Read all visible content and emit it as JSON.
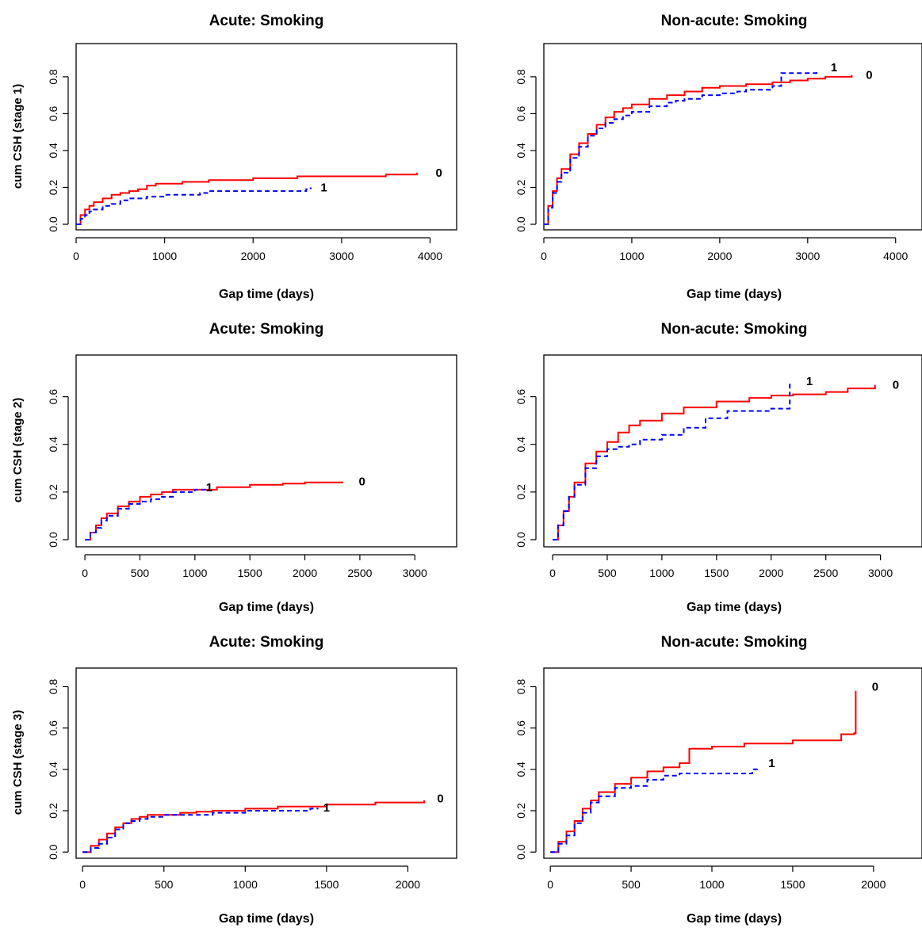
{
  "colors": {
    "group_0": "#ff0000",
    "group_1": "#0000ff",
    "axis": "#000000",
    "background": "#ffffff"
  },
  "chart_data": [
    {
      "type": "line",
      "title": "Acute: Smoking",
      "xlabel": "Gap time (days)",
      "ylabel": "cum CSH (stage 1)",
      "xlim": [
        0,
        4300
      ],
      "ylim": [
        -0.03,
        0.98
      ],
      "xticks": [
        0,
        1000,
        2000,
        3000,
        4000
      ],
      "yticks": [
        0.0,
        0.2,
        0.4,
        0.6,
        0.8
      ],
      "xtick_labels": [
        "0",
        "1000",
        "2000",
        "3000",
        "4000"
      ],
      "ytick_labels": [
        "0.0",
        "0.2",
        "0.4",
        "0.6",
        "0.8"
      ],
      "grid": false,
      "legend": "none",
      "series": [
        {
          "name": "0",
          "color": "#ff0000",
          "dashed": false,
          "x": [
            0,
            50,
            100,
            150,
            200,
            300,
            400,
            500,
            600,
            700,
            800,
            900,
            1200,
            1500,
            2000,
            2500,
            3000,
            3500,
            3850
          ],
          "y": [
            0,
            0.05,
            0.08,
            0.1,
            0.12,
            0.14,
            0.16,
            0.17,
            0.18,
            0.19,
            0.21,
            0.22,
            0.23,
            0.24,
            0.25,
            0.26,
            0.26,
            0.27,
            0.28
          ]
        },
        {
          "name": "1",
          "color": "#0000ff",
          "dashed": true,
          "x": [
            0,
            50,
            100,
            150,
            200,
            300,
            400,
            500,
            600,
            800,
            1000,
            1400,
            1500,
            2000,
            2600,
            2650
          ],
          "y": [
            0,
            0.03,
            0.05,
            0.07,
            0.08,
            0.1,
            0.11,
            0.13,
            0.14,
            0.15,
            0.16,
            0.17,
            0.18,
            0.18,
            0.19,
            0.2
          ]
        }
      ],
      "end_labels": [
        {
          "text": "0",
          "x": 4100,
          "y": 0.28
        },
        {
          "text": "1",
          "x": 2800,
          "y": 0.2
        }
      ]
    },
    {
      "type": "line",
      "title": "Non-acute: Smoking",
      "xlabel": "Gap time (days)",
      "ylabel": "",
      "xlim": [
        0,
        4300
      ],
      "ylim": [
        -0.03,
        0.98
      ],
      "xticks": [
        0,
        1000,
        2000,
        3000,
        4000
      ],
      "yticks": [
        0.0,
        0.2,
        0.4,
        0.6,
        0.8
      ],
      "xtick_labels": [
        "0",
        "1000",
        "2000",
        "3000",
        "4000"
      ],
      "ytick_labels": [
        "0.0",
        "0.2",
        "0.4",
        "0.6",
        "0.8"
      ],
      "grid": false,
      "legend": "none",
      "series": [
        {
          "name": "0",
          "color": "#ff0000",
          "dashed": false,
          "x": [
            0,
            50,
            100,
            150,
            200,
            300,
            400,
            500,
            600,
            700,
            800,
            900,
            1000,
            1200,
            1400,
            1600,
            1800,
            2000,
            2300,
            2600,
            2800,
            3000,
            3200,
            3500
          ],
          "y": [
            0,
            0.1,
            0.18,
            0.25,
            0.3,
            0.38,
            0.44,
            0.49,
            0.54,
            0.58,
            0.61,
            0.63,
            0.65,
            0.68,
            0.7,
            0.72,
            0.74,
            0.75,
            0.76,
            0.77,
            0.78,
            0.79,
            0.8,
            0.81
          ]
        },
        {
          "name": "1",
          "color": "#0000ff",
          "dashed": true,
          "x": [
            0,
            50,
            100,
            150,
            200,
            300,
            400,
            500,
            600,
            700,
            800,
            900,
            1000,
            1200,
            1400,
            1500,
            1600,
            1800,
            2000,
            2200,
            2300,
            2600,
            2700,
            3000,
            3100
          ],
          "y": [
            0,
            0.09,
            0.17,
            0.23,
            0.28,
            0.36,
            0.42,
            0.48,
            0.52,
            0.55,
            0.57,
            0.59,
            0.61,
            0.64,
            0.66,
            0.67,
            0.68,
            0.7,
            0.71,
            0.72,
            0.73,
            0.75,
            0.82,
            0.82,
            0.83
          ]
        }
      ],
      "end_labels": [
        {
          "text": "1",
          "x": 3300,
          "y": 0.85
        },
        {
          "text": "0",
          "x": 3700,
          "y": 0.81
        }
      ]
    },
    {
      "type": "line",
      "title": "Acute: Smoking",
      "xlabel": "Gap time (days)",
      "ylabel": "cum CSH (stage 2)",
      "xlim": [
        -80,
        3380
      ],
      "ylim": [
        -0.03,
        0.775
      ],
      "xticks": [
        0,
        500,
        1000,
        1500,
        2000,
        2500,
        3000
      ],
      "yticks": [
        0.0,
        0.2,
        0.4,
        0.6
      ],
      "xtick_labels": [
        "0",
        "500",
        "1000",
        "1500",
        "2000",
        "2500",
        "3000"
      ],
      "ytick_labels": [
        "0.0",
        "0.2",
        "0.4",
        "0.6"
      ],
      "grid": false,
      "legend": "none",
      "series": [
        {
          "name": "0",
          "color": "#ff0000",
          "dashed": false,
          "x": [
            0,
            50,
            100,
            150,
            200,
            300,
            400,
            500,
            600,
            700,
            800,
            1000,
            1200,
            1500,
            1800,
            2000,
            2350
          ],
          "y": [
            0,
            0.03,
            0.06,
            0.09,
            0.11,
            0.14,
            0.16,
            0.18,
            0.19,
            0.2,
            0.21,
            0.21,
            0.22,
            0.23,
            0.235,
            0.24,
            0.24
          ]
        },
        {
          "name": "1",
          "color": "#0000ff",
          "dashed": true,
          "x": [
            0,
            50,
            100,
            150,
            200,
            300,
            400,
            500,
            600,
            700,
            800,
            1000,
            1100
          ],
          "y": [
            0,
            0.03,
            0.05,
            0.08,
            0.1,
            0.13,
            0.15,
            0.16,
            0.17,
            0.18,
            0.2,
            0.21,
            0.21
          ]
        }
      ],
      "end_labels": [
        {
          "text": "0",
          "x": 2520,
          "y": 0.245
        },
        {
          "text": "1",
          "x": 1130,
          "y": 0.22
        }
      ]
    },
    {
      "type": "line",
      "title": "Non-acute: Smoking",
      "xlabel": "Gap time (days)",
      "ylabel": "",
      "xlim": [
        -80,
        3380
      ],
      "ylim": [
        -0.03,
        0.775
      ],
      "xticks": [
        0,
        500,
        1000,
        1500,
        2000,
        2500,
        3000
      ],
      "yticks": [
        0.0,
        0.2,
        0.4,
        0.6
      ],
      "xtick_labels": [
        "0",
        "500",
        "1000",
        "1500",
        "2000",
        "2500",
        "3000"
      ],
      "ytick_labels": [
        "0.0",
        "0.2",
        "0.4",
        "0.6"
      ],
      "grid": false,
      "legend": "none",
      "series": [
        {
          "name": "0",
          "color": "#ff0000",
          "dashed": false,
          "x": [
            0,
            50,
            100,
            150,
            200,
            300,
            400,
            500,
            600,
            700,
            800,
            1000,
            1200,
            1500,
            1800,
            2000,
            2200,
            2500,
            2700,
            2950
          ],
          "y": [
            0,
            0.06,
            0.12,
            0.18,
            0.24,
            0.32,
            0.37,
            0.41,
            0.45,
            0.48,
            0.5,
            0.53,
            0.555,
            0.58,
            0.595,
            0.605,
            0.61,
            0.62,
            0.635,
            0.65
          ]
        },
        {
          "name": "1",
          "color": "#0000ff",
          "dashed": true,
          "x": [
            0,
            50,
            100,
            150,
            200,
            300,
            400,
            500,
            600,
            700,
            800,
            1000,
            1200,
            1400,
            1600,
            2000,
            2150,
            2170
          ],
          "y": [
            0,
            0.06,
            0.12,
            0.18,
            0.23,
            0.3,
            0.35,
            0.38,
            0.39,
            0.4,
            0.42,
            0.44,
            0.47,
            0.51,
            0.54,
            0.55,
            0.55,
            0.66
          ]
        }
      ],
      "end_labels": [
        {
          "text": "1",
          "x": 2350,
          "y": 0.665
        },
        {
          "text": "0",
          "x": 3140,
          "y": 0.65
        }
      ]
    },
    {
      "type": "line",
      "title": "Acute: Smoking",
      "xlabel": "Gap time (days)",
      "ylabel": "cum CSH (stage 3)",
      "xlim": [
        -40,
        2300
      ],
      "ylim": [
        -0.03,
        0.89
      ],
      "xticks": [
        0,
        500,
        1000,
        1500,
        2000
      ],
      "yticks": [
        0.0,
        0.2,
        0.4,
        0.6,
        0.8
      ],
      "xtick_labels": [
        "0",
        "500",
        "1000",
        "1500",
        "2000"
      ],
      "ytick_labels": [
        "0.0",
        "0.2",
        "0.4",
        "0.6",
        "0.8"
      ],
      "grid": false,
      "legend": "none",
      "series": [
        {
          "name": "0",
          "color": "#ff0000",
          "dashed": false,
          "x": [
            0,
            50,
            100,
            150,
            200,
            250,
            300,
            350,
            400,
            500,
            600,
            700,
            800,
            1000,
            1200,
            1500,
            1800,
            2100
          ],
          "y": [
            0,
            0.03,
            0.06,
            0.09,
            0.12,
            0.14,
            0.16,
            0.17,
            0.18,
            0.18,
            0.19,
            0.195,
            0.2,
            0.21,
            0.22,
            0.23,
            0.24,
            0.25
          ]
        },
        {
          "name": "1",
          "color": "#0000ff",
          "dashed": true,
          "x": [
            0,
            50,
            100,
            150,
            200,
            250,
            300,
            350,
            400,
            500,
            600,
            800,
            1000,
            1200,
            1400,
            1450
          ],
          "y": [
            0,
            0.02,
            0.04,
            0.07,
            0.11,
            0.14,
            0.15,
            0.16,
            0.17,
            0.18,
            0.18,
            0.19,
            0.2,
            0.2,
            0.21,
            0.21
          ]
        }
      ],
      "end_labels": [
        {
          "text": "0",
          "x": 2200,
          "y": 0.26
        },
        {
          "text": "1",
          "x": 1500,
          "y": 0.215
        }
      ]
    },
    {
      "type": "line",
      "title": "Non-acute: Smoking",
      "xlabel": "Gap time (days)",
      "ylabel": "",
      "xlim": [
        -40,
        2300
      ],
      "ylim": [
        -0.03,
        0.89
      ],
      "xticks": [
        0,
        500,
        1000,
        1500,
        2000
      ],
      "yticks": [
        0.0,
        0.2,
        0.4,
        0.6,
        0.8
      ],
      "xtick_labels": [
        "0",
        "500",
        "1000",
        "1500",
        "2000"
      ],
      "ytick_labels": [
        "0.0",
        "0.2",
        "0.4",
        "0.6",
        "0.8"
      ],
      "grid": false,
      "legend": "none",
      "series": [
        {
          "name": "0",
          "color": "#ff0000",
          "dashed": false,
          "x": [
            0,
            50,
            100,
            150,
            200,
            250,
            300,
            400,
            500,
            600,
            700,
            800,
            850,
            860,
            900,
            1000,
            1200,
            1500,
            1700,
            1800,
            1880,
            1890
          ],
          "y": [
            0,
            0.05,
            0.1,
            0.15,
            0.21,
            0.25,
            0.29,
            0.33,
            0.36,
            0.39,
            0.41,
            0.43,
            0.43,
            0.5,
            0.5,
            0.51,
            0.525,
            0.54,
            0.54,
            0.57,
            0.575,
            0.78
          ]
        },
        {
          "name": "1",
          "color": "#0000ff",
          "dashed": true,
          "x": [
            0,
            50,
            100,
            150,
            200,
            250,
            300,
            400,
            500,
            600,
            700,
            800,
            1000,
            1200,
            1250,
            1280
          ],
          "y": [
            0,
            0.04,
            0.08,
            0.14,
            0.19,
            0.24,
            0.27,
            0.31,
            0.32,
            0.35,
            0.37,
            0.38,
            0.38,
            0.38,
            0.4,
            0.41
          ]
        }
      ],
      "end_labels": [
        {
          "text": "0",
          "x": 2010,
          "y": 0.8
        },
        {
          "text": "1",
          "x": 1370,
          "y": 0.43
        }
      ]
    }
  ]
}
